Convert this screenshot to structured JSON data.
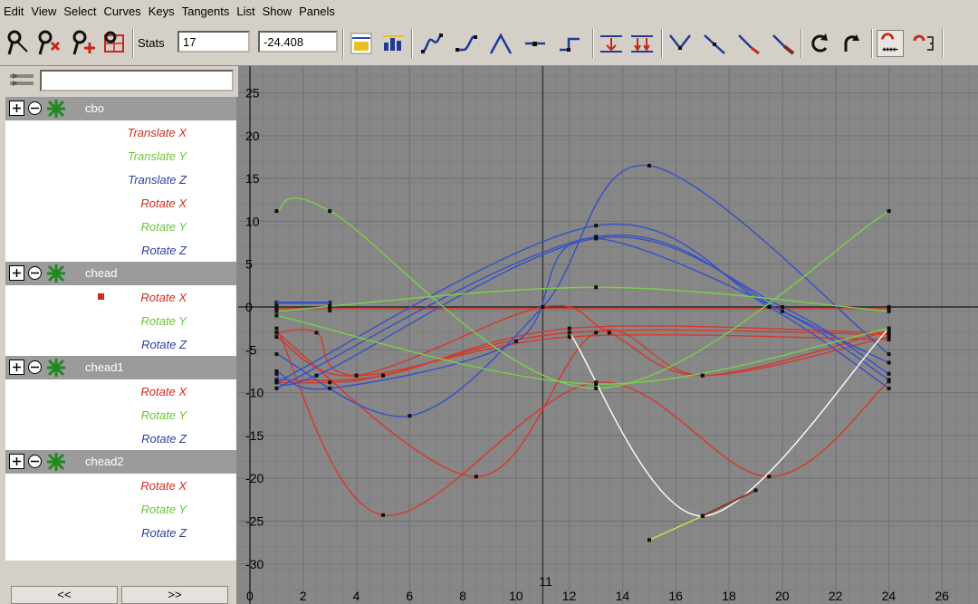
{
  "menu": [
    "Edit",
    "View",
    "Select",
    "Curves",
    "Keys",
    "Tangents",
    "List",
    "Show",
    "Panels"
  ],
  "toolbar": {
    "stats_label": "Stats",
    "stats_frame": "17",
    "stats_value": "-24.408",
    "icons": [
      "move-nearest-key-icon",
      "insert-key-icon",
      "add-key-icon",
      "lattice-deform-icon",
      "frame-all-icon",
      "frame-playback-range-icon",
      "spline-tangent-icon",
      "clamped-tangent-icon",
      "linear-tangent-icon",
      "flat-tangent-icon",
      "step-tangent-icon",
      "plateau-tangent-icon",
      "buffer-curve-snapshot-icon",
      "swap-buffer-curve-icon",
      "break-tangents-icon",
      "unify-tangents-icon",
      "free-tangent-weight-icon",
      "lock-tangent-weight-icon",
      "pre-infinity-cycle-icon",
      "post-infinity-cycle-icon",
      "auto-load-icon",
      "load-selected-icon"
    ]
  },
  "outliner": {
    "nodes": [
      {
        "name": "cbo",
        "attributes": [
          {
            "label": "Translate X",
            "color": "#d42a1e"
          },
          {
            "label": "Translate Y",
            "color": "#6ec43a"
          },
          {
            "label": "Translate Z",
            "color": "#2c3fa0"
          },
          {
            "label": "Rotate X",
            "color": "#d42a1e"
          },
          {
            "label": "Rotate Y",
            "color": "#6ec43a"
          },
          {
            "label": "Rotate Z",
            "color": "#2c3fa0"
          }
        ]
      },
      {
        "name": "chead",
        "attributes": [
          {
            "label": "Rotate X",
            "color": "#d42a1e",
            "selected": true
          },
          {
            "label": "Rotate Y",
            "color": "#6ec43a"
          },
          {
            "label": "Rotate Z",
            "color": "#2c3fa0"
          }
        ]
      },
      {
        "name": "chead1",
        "attributes": [
          {
            "label": "Rotate X",
            "color": "#d42a1e"
          },
          {
            "label": "Rotate Y",
            "color": "#6ec43a"
          },
          {
            "label": "Rotate Z",
            "color": "#2c3fa0"
          }
        ]
      },
      {
        "name": "chead2",
        "attributes": [
          {
            "label": "Rotate X",
            "color": "#d42a1e"
          },
          {
            "label": "Rotate Y",
            "color": "#6ec43a"
          },
          {
            "label": "Rotate Z",
            "color": "#2c3fa0"
          }
        ]
      }
    ],
    "prev_label": "<<",
    "next_label": ">>"
  },
  "graph": {
    "x_ticks": [
      "0",
      "2",
      "4",
      "6",
      "8",
      "10",
      "12",
      "14",
      "16",
      "18",
      "20",
      "22",
      "24",
      "26"
    ],
    "y_ticks": [
      "25",
      "20",
      "15",
      "10",
      "5",
      "0",
      "-5",
      "-10",
      "-15",
      "-20",
      "-25",
      "-30"
    ],
    "current_frame": "11",
    "colors": {
      "background": "#878787",
      "grid": "#7a7a7a",
      "red": "#d6382a",
      "green": "#7ad04a",
      "blue": "#3550c8",
      "white": "#ffffff",
      "yellow": "#d8e040",
      "brown": "#8a3a2a"
    },
    "curves": [
      {
        "color": "red",
        "keys": [
          [
            1,
            -2.5
          ],
          [
            5,
            -24.3
          ],
          [
            13,
            -8.8
          ],
          [
            19.5,
            -19.8
          ],
          [
            24,
            -8.7
          ]
        ]
      },
      {
        "color": "red",
        "keys": [
          [
            1,
            -3
          ],
          [
            8.5,
            -19.8
          ],
          [
            13,
            -3
          ],
          [
            17,
            -8
          ],
          [
            24,
            -3.5
          ]
        ]
      },
      {
        "color": "red",
        "keys": [
          [
            1,
            -3.5
          ],
          [
            4,
            -8
          ],
          [
            11,
            0
          ],
          [
            13.5,
            -3
          ],
          [
            17,
            -8
          ],
          [
            24,
            -2.8
          ]
        ]
      },
      {
        "color": "red",
        "keys": [
          [
            1,
            -8.8
          ],
          [
            3,
            -8.8
          ],
          [
            5,
            -8
          ],
          [
            12,
            -3
          ],
          [
            24,
            -3.2
          ]
        ]
      },
      {
        "color": "red",
        "keys": [
          [
            1,
            -8.5
          ],
          [
            5,
            -8
          ],
          [
            12,
            -2.5
          ],
          [
            24,
            -3
          ]
        ]
      },
      {
        "color": "red",
        "keys": [
          [
            1,
            -3
          ],
          [
            2.5,
            -3
          ],
          [
            4,
            -8
          ],
          [
            12,
            -3.5
          ],
          [
            24,
            -3.8
          ]
        ]
      },
      {
        "color": "red",
        "keys": [
          [
            1,
            -0.2
          ],
          [
            24,
            -0.2
          ]
        ]
      },
      {
        "color": "blue",
        "keys": [
          [
            1,
            -8.8
          ],
          [
            13,
            9.5
          ],
          [
            19.5,
            0
          ],
          [
            24,
            -9.5
          ]
        ]
      },
      {
        "color": "blue",
        "keys": [
          [
            1,
            -9.5
          ],
          [
            13,
            8.2
          ],
          [
            20,
            -0.5
          ],
          [
            24,
            -8.5
          ]
        ]
      },
      {
        "color": "blue",
        "keys": [
          [
            1,
            -7.8
          ],
          [
            2.5,
            -8
          ],
          [
            13,
            8
          ],
          [
            20,
            0
          ],
          [
            24,
            -7.8
          ]
        ]
      },
      {
        "color": "blue",
        "keys": [
          [
            1,
            -5.5
          ],
          [
            6,
            -12.7
          ],
          [
            11,
            0
          ],
          [
            15,
            16.5
          ],
          [
            24,
            -5.5
          ]
        ]
      },
      {
        "color": "blue",
        "keys": [
          [
            1,
            -7.5
          ],
          [
            3,
            -9.5
          ],
          [
            10,
            -4
          ],
          [
            13,
            8
          ],
          [
            24,
            -6.5
          ]
        ]
      },
      {
        "color": "green",
        "keys": [
          [
            1,
            11.2
          ],
          [
            3,
            11.2
          ],
          [
            13,
            -9.5
          ],
          [
            24,
            11.2
          ]
        ]
      },
      {
        "color": "green",
        "keys": [
          [
            1,
            -0.5
          ],
          [
            13,
            2.3
          ],
          [
            24,
            -0.5
          ]
        ]
      },
      {
        "color": "green",
        "keys": [
          [
            1,
            -1
          ],
          [
            13,
            -9
          ],
          [
            24,
            -2.5
          ]
        ]
      },
      {
        "color": "white",
        "keys": [
          [
            12,
            -3
          ],
          [
            17,
            -24.4
          ],
          [
            24,
            -2.5
          ]
        ]
      },
      {
        "color": "yellow",
        "keys": [
          [
            15,
            -27.2
          ],
          [
            17,
            -24.4
          ]
        ]
      },
      {
        "color": "brown",
        "keys": [
          [
            17,
            -24.4
          ],
          [
            19,
            -21.4
          ]
        ]
      }
    ]
  }
}
